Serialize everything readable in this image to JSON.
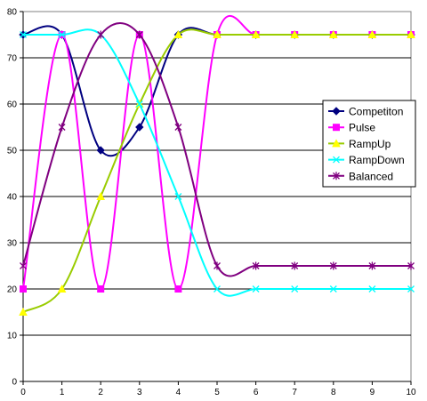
{
  "chart_data": {
    "type": "line",
    "title": "",
    "xlabel": "",
    "ylabel": "",
    "x": [
      0,
      1,
      2,
      3,
      4,
      5,
      6,
      7,
      8,
      9,
      10
    ],
    "xlim": [
      0,
      10
    ],
    "ylim": [
      0,
      80
    ],
    "xticks": [
      "0",
      "1",
      "2",
      "3",
      "4",
      "5",
      "6",
      "7",
      "8",
      "9",
      "10"
    ],
    "yticks": [
      "0",
      "10",
      "20",
      "30",
      "40",
      "50",
      "60",
      "70",
      "80"
    ],
    "grid": "horizontal",
    "legend_position": "right",
    "series": [
      {
        "name": "Competiton",
        "color": "#000080",
        "marker": "diamond",
        "values": [
          75,
          75,
          50,
          55,
          75,
          75,
          75,
          75,
          75,
          75,
          75
        ]
      },
      {
        "name": "Pulse",
        "color": "#ff00ff",
        "marker": "square",
        "values": [
          20,
          75,
          20,
          75,
          20,
          75,
          75,
          75,
          75,
          75,
          75
        ]
      },
      {
        "name": "RampUp",
        "color": "#99cc00",
        "marker": "triangle",
        "marker_fill": "#ffff00",
        "values": [
          15,
          20,
          40,
          60,
          75,
          75,
          75,
          75,
          75,
          75,
          75
        ]
      },
      {
        "name": "RampDown",
        "color": "#00ffff",
        "marker": "x",
        "values": [
          75,
          75,
          75,
          60,
          40,
          20,
          20,
          20,
          20,
          20,
          20
        ]
      },
      {
        "name": "Balanced",
        "color": "#800080",
        "marker": "star",
        "values": [
          25,
          55,
          75,
          75,
          55,
          25,
          25,
          25,
          25,
          25,
          25
        ]
      }
    ]
  }
}
